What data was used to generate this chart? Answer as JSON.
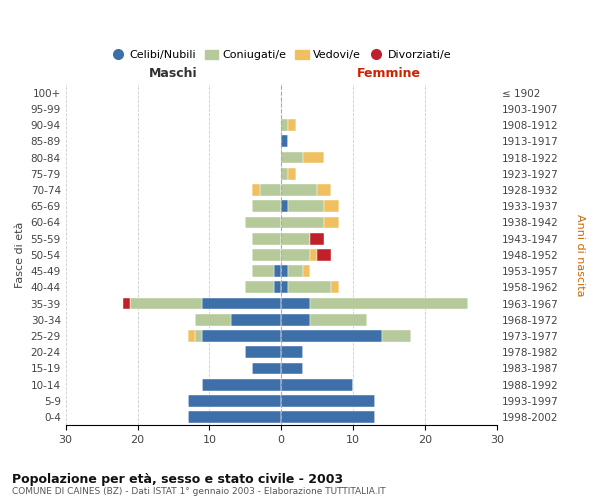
{
  "age_groups": [
    "100+",
    "95-99",
    "90-94",
    "85-89",
    "80-84",
    "75-79",
    "70-74",
    "65-69",
    "60-64",
    "55-59",
    "50-54",
    "45-49",
    "40-44",
    "35-39",
    "30-34",
    "25-29",
    "20-24",
    "15-19",
    "10-14",
    "5-9",
    "0-4"
  ],
  "birth_years": [
    "≤ 1902",
    "1903-1907",
    "1908-1912",
    "1913-1917",
    "1918-1922",
    "1923-1927",
    "1928-1932",
    "1933-1937",
    "1938-1942",
    "1943-1947",
    "1948-1952",
    "1953-1957",
    "1958-1962",
    "1963-1967",
    "1968-1972",
    "1973-1977",
    "1978-1982",
    "1983-1987",
    "1988-1992",
    "1993-1997",
    "1998-2002"
  ],
  "male": {
    "celibi": [
      0,
      0,
      0,
      0,
      0,
      0,
      0,
      0,
      0,
      0,
      0,
      1,
      1,
      11,
      7,
      11,
      5,
      4,
      11,
      13,
      13
    ],
    "coniugati": [
      0,
      0,
      0,
      0,
      0,
      0,
      3,
      4,
      5,
      4,
      4,
      3,
      4,
      10,
      5,
      1,
      0,
      0,
      0,
      0,
      0
    ],
    "vedovi": [
      0,
      0,
      0,
      0,
      0,
      0,
      1,
      0,
      0,
      0,
      0,
      0,
      0,
      0,
      0,
      1,
      0,
      0,
      0,
      0,
      0
    ],
    "divorziati": [
      0,
      0,
      0,
      0,
      0,
      0,
      0,
      0,
      0,
      0,
      0,
      0,
      0,
      1,
      0,
      0,
      0,
      0,
      0,
      0,
      0
    ]
  },
  "female": {
    "nubili": [
      0,
      0,
      0,
      1,
      0,
      0,
      0,
      1,
      0,
      0,
      0,
      1,
      1,
      4,
      4,
      14,
      3,
      3,
      10,
      13,
      13
    ],
    "coniugate": [
      0,
      0,
      1,
      0,
      3,
      1,
      5,
      5,
      6,
      4,
      4,
      2,
      6,
      22,
      8,
      4,
      0,
      0,
      0,
      0,
      0
    ],
    "vedove": [
      0,
      0,
      1,
      0,
      3,
      1,
      2,
      2,
      2,
      0,
      1,
      1,
      1,
      0,
      0,
      0,
      0,
      0,
      0,
      0,
      0
    ],
    "divorziate": [
      0,
      0,
      0,
      0,
      0,
      0,
      0,
      0,
      0,
      2,
      2,
      0,
      0,
      0,
      0,
      0,
      0,
      0,
      0,
      0,
      0
    ]
  },
  "colors": {
    "celibi": "#3d6fa8",
    "coniugati": "#b5c99a",
    "vedovi": "#f0c060",
    "divorziati": "#c0202a"
  },
  "xlim": 30,
  "title": "Popolazione per età, sesso e stato civile - 2003",
  "subtitle": "COMUNE DI CAINES (BZ) - Dati ISTAT 1° gennaio 2003 - Elaborazione TUTTITALIA.IT",
  "ylabel_left": "Fasce di età",
  "ylabel_right": "Anni di nascita",
  "xlabel_maschi": "Maschi",
  "xlabel_femmine": "Femmine",
  "legend_labels": [
    "Celibi/Nubili",
    "Coniugati/e",
    "Vedovi/e",
    "Divorziati/e"
  ],
  "background_color": "#ffffff",
  "grid_color": "#cccccc"
}
